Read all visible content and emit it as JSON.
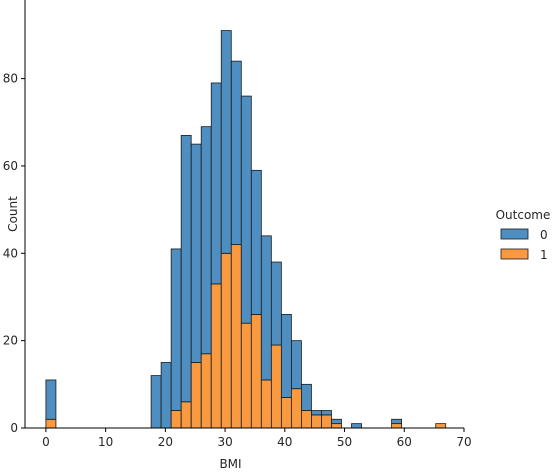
{
  "chart_data": {
    "type": "bar",
    "subtype": "stacked-histogram",
    "xlabel": "BMI",
    "ylabel": "Count",
    "xlim": [
      -3.5,
      70
    ],
    "ylim": [
      0,
      98
    ],
    "xticks": [
      0,
      10,
      20,
      30,
      40,
      50,
      60,
      70
    ],
    "yticks": [
      0,
      20,
      40,
      60,
      80
    ],
    "grid": false,
    "legend": {
      "title": "Outcome",
      "placement": "right"
    },
    "bin_width": 1.6775,
    "bins_start": [
      0.0,
      17.616,
      19.293,
      20.971,
      22.648,
      24.326,
      26.003,
      27.681,
      29.358,
      31.036,
      32.713,
      34.391,
      36.068,
      37.746,
      39.423,
      41.101,
      42.778,
      44.456,
      46.133,
      47.811,
      49.488,
      51.166,
      52.843,
      57.876,
      59.553,
      65.263
    ],
    "series": [
      {
        "name": "0",
        "color": "#4e8ec1",
        "values": [
          9,
          12,
          15,
          37,
          61,
          50,
          52,
          46,
          51,
          42,
          52,
          33,
          33,
          19,
          19,
          11,
          6,
          1,
          1,
          1,
          0,
          1,
          0,
          1,
          0,
          0
        ]
      },
      {
        "name": "1",
        "color": "#f99a41",
        "values": [
          2,
          0,
          0,
          4,
          6,
          15,
          17,
          33,
          40,
          42,
          24,
          26,
          11,
          19,
          7,
          9,
          4,
          3,
          3,
          1,
          0,
          0,
          0,
          1,
          0,
          1
        ]
      }
    ]
  }
}
